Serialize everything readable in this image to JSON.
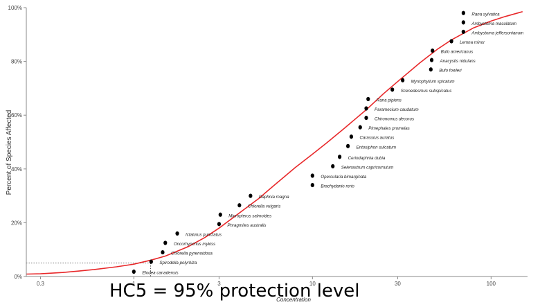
{
  "caption": "HC5 = 95% protection level",
  "chart_data": {
    "type": "scatter",
    "title": "",
    "xlabel": "Concentration",
    "ylabel": "Percent of Species Affected",
    "x_scale": "log",
    "xlim": [
      0.25,
      160
    ],
    "ylim": [
      0,
      100
    ],
    "x_ticks": [
      {
        "value": 0.3,
        "label": "0.3"
      },
      {
        "value": 1,
        "label": "1"
      },
      {
        "value": 3,
        "label": "3"
      },
      {
        "value": 10,
        "label": "10"
      },
      {
        "value": 30,
        "label": "30"
      },
      {
        "value": 100,
        "label": "100"
      }
    ],
    "y_ticks": [
      {
        "value": 0,
        "label": "0%"
      },
      {
        "value": 20,
        "label": "20%"
      },
      {
        "value": 40,
        "label": "40%"
      },
      {
        "value": 60,
        "label": "60%"
      },
      {
        "value": 80,
        "label": "80%"
      },
      {
        "value": 100,
        "label": "100%"
      }
    ],
    "grid": false,
    "points": [
      {
        "x": 1.0,
        "y": 1.8,
        "label": "Elodea canadensis"
      },
      {
        "x": 1.25,
        "y": 5.5,
        "label": "Spirodella polyrhiza"
      },
      {
        "x": 1.45,
        "y": 9.0,
        "label": "Chlorella pyrenoidosa"
      },
      {
        "x": 1.5,
        "y": 12.5,
        "label": "Oncorhynchus mykiss"
      },
      {
        "x": 1.75,
        "y": 16.0,
        "label": "Ictalurus punctatus"
      },
      {
        "x": 3.0,
        "y": 19.5,
        "label": "Phragmites australis"
      },
      {
        "x": 3.05,
        "y": 23.0,
        "label": "Micropterus salmoides"
      },
      {
        "x": 3.9,
        "y": 26.5,
        "label": "Chlorella vulgaris"
      },
      {
        "x": 4.5,
        "y": 30.0,
        "label": "Daphnia magna"
      },
      {
        "x": 10.0,
        "y": 34.0,
        "label": "Brachydanio rerio"
      },
      {
        "x": 10.0,
        "y": 37.5,
        "label": "Opercularia bimarginata"
      },
      {
        "x": 13.0,
        "y": 41.0,
        "label": "Selenastrum capricornutum"
      },
      {
        "x": 14.2,
        "y": 44.5,
        "label": "Ceriodaphnia dubia"
      },
      {
        "x": 15.8,
        "y": 48.5,
        "label": "Entosiphon sulcatum"
      },
      {
        "x": 16.5,
        "y": 52.0,
        "label": "Carassius auratus"
      },
      {
        "x": 18.5,
        "y": 55.5,
        "label": "Pimephales promelas"
      },
      {
        "x": 20.0,
        "y": 59.0,
        "label": "Chironomus decorus"
      },
      {
        "x": 20.0,
        "y": 62.5,
        "label": "Paramecium caudatum"
      },
      {
        "x": 20.5,
        "y": 66.0,
        "label": "Rana pipiens"
      },
      {
        "x": 28.0,
        "y": 69.5,
        "label": "Scenedesmus subspicatus"
      },
      {
        "x": 32.0,
        "y": 73.0,
        "label": "Myriophyllum spicatum"
      },
      {
        "x": 46.0,
        "y": 77.0,
        "label": "Bufo fowleri"
      },
      {
        "x": 46.5,
        "y": 80.5,
        "label": "Anacystis nidulans"
      },
      {
        "x": 47.0,
        "y": 84.0,
        "label": "Bufo americanus"
      },
      {
        "x": 60.0,
        "y": 87.5,
        "label": "Lemna minor"
      },
      {
        "x": 70.0,
        "y": 91.0,
        "label": "Ambystoma jeffersonianum"
      },
      {
        "x": 70.0,
        "y": 94.5,
        "label": "Ambystoma maculatum"
      },
      {
        "x": 70.0,
        "y": 98.0,
        "label": "Rana sylvatica"
      }
    ],
    "fit_curve": {
      "type": "log-normal CDF",
      "x": [
        0.25,
        0.3,
        0.4,
        0.5,
        0.6,
        0.8,
        1,
        1.25,
        1.5,
        2,
        2.5,
        3,
        4,
        5,
        6,
        8,
        10,
        12,
        15,
        20,
        25,
        30,
        40,
        50,
        60,
        80,
        100,
        120,
        150
      ],
      "y": [
        0.9,
        1.0,
        1.5,
        2.1,
        2.6,
        3.6,
        4.6,
        6.1,
        7.6,
        11.0,
        14.5,
        18.0,
        24.2,
        29.0,
        33.5,
        40.5,
        45.5,
        49.7,
        55.0,
        62.0,
        68.0,
        72.5,
        79.5,
        84.5,
        88.0,
        92.5,
        95.0,
        96.7,
        98.5
      ],
      "color": "#e8282a"
    },
    "hc5_reference": {
      "y": 5,
      "x": 1.24
    },
    "point_color": "#000000"
  }
}
